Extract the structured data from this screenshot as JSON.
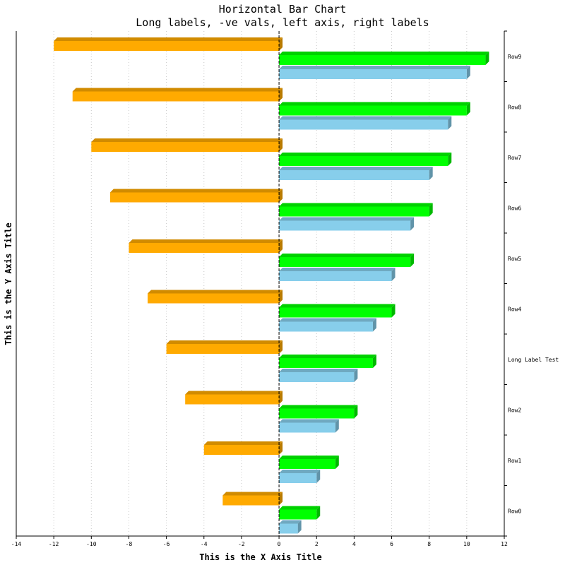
{
  "chart_data": {
    "type": "bar",
    "orientation": "horizontal",
    "title": "Horizontal Bar Chart",
    "subtitle": "Long labels, -ve vals, left axis, right labels",
    "xlabel": "This is the X Axis Title",
    "ylabel": "This is the Y Axis Title",
    "xlim": [
      -14,
      12
    ],
    "x_ticks": [
      -14,
      -12,
      -10,
      -8,
      -6,
      -4,
      -2,
      0,
      2,
      4,
      6,
      8,
      10,
      12
    ],
    "grid": true,
    "categories": [
      "Row0",
      "Row1",
      "Row2",
      "Long Label Test",
      "Row4",
      "Row5",
      "Row6",
      "Row7",
      "Row8",
      "Row9"
    ],
    "series": [
      {
        "values": [
          -3,
          -4,
          -5,
          -6,
          -7,
          -8,
          -9,
          -10,
          -11,
          -12
        ],
        "color": "#ffaa00"
      },
      {
        "values": [
          2,
          3,
          4,
          5,
          6,
          7,
          8,
          9,
          10,
          11
        ],
        "color": "#00ff00"
      },
      {
        "values": [
          1,
          2,
          3,
          4,
          5,
          6,
          7,
          8,
          9,
          10
        ],
        "color": "#87ceeb"
      }
    ]
  }
}
